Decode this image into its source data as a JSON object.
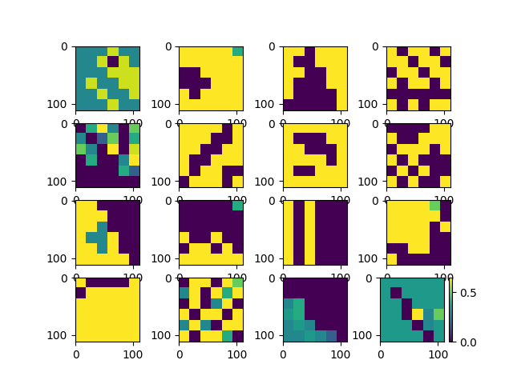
{
  "chart_data": [
    {
      "type": "heatmap",
      "xlim": [
        -0.5,
        111.5
      ],
      "ylim": [
        111.5,
        -0.5
      ],
      "xticks": [
        0,
        100
      ],
      "yticks": [
        0,
        100
      ],
      "cells": [
        [
          0.3,
          0.3,
          0.3,
          0.6,
          0.3,
          0.3
        ],
        [
          0.3,
          0.3,
          0.6,
          0,
          0.6,
          0.3
        ],
        [
          0.3,
          0.3,
          0.3,
          0.6,
          0.6,
          0.6
        ],
        [
          0.3,
          0.6,
          0.3,
          0.3,
          0.6,
          0.6
        ],
        [
          0.3,
          0.3,
          0.6,
          0.3,
          0.3,
          0.6
        ],
        [
          0.3,
          0.3,
          0.3,
          0.6,
          0.3,
          0.3
        ]
      ]
    },
    {
      "type": "heatmap",
      "xlim": [
        -0.5,
        111.5
      ],
      "ylim": [
        111.5,
        -0.5
      ],
      "xticks": [
        0,
        100
      ],
      "yticks": [
        0,
        100
      ],
      "cells": [
        [
          0.65,
          0.65,
          0.65,
          0.65,
          0.65,
          0.4
        ],
        [
          0.65,
          0.65,
          0.65,
          0.65,
          0.65,
          0.65
        ],
        [
          0,
          0,
          0.65,
          0.65,
          0.65,
          0.65
        ],
        [
          0,
          0,
          0,
          0.65,
          0.65,
          0.65
        ],
        [
          0.65,
          0,
          0.65,
          0.65,
          0.65,
          0.65
        ],
        [
          0.65,
          0.65,
          0.65,
          0.65,
          0.65,
          0.65
        ]
      ]
    },
    {
      "type": "heatmap",
      "xlim": [
        -0.5,
        111.5
      ],
      "ylim": [
        111.5,
        -0.5
      ],
      "xticks": [
        0,
        100
      ],
      "yticks": [
        0,
        100
      ],
      "cells": [
        [
          0.65,
          0.65,
          0,
          0.65,
          0.65,
          0.65
        ],
        [
          0.65,
          0,
          0,
          0.65,
          0.65,
          0.65
        ],
        [
          0.65,
          0.65,
          0,
          0,
          0.65,
          0.65
        ],
        [
          0.65,
          0,
          0,
          0,
          0.65,
          0.65
        ],
        [
          0.65,
          0,
          0,
          0,
          0,
          0.65
        ],
        [
          0,
          0,
          0,
          0,
          0,
          0.65
        ]
      ]
    },
    {
      "type": "heatmap",
      "xlim": [
        -0.5,
        111.5
      ],
      "ylim": [
        111.5,
        -0.5
      ],
      "xticks": [
        0,
        100
      ],
      "yticks": [
        0,
        100
      ],
      "cells": [
        [
          0.65,
          0,
          0.65,
          0.65,
          0,
          0.65
        ],
        [
          0.65,
          0.65,
          0,
          0.65,
          0.65,
          0
        ],
        [
          0,
          0.65,
          0.65,
          0,
          0.65,
          0.65
        ],
        [
          0.65,
          0,
          0.65,
          0.65,
          0,
          0.65
        ],
        [
          0,
          0,
          0,
          0,
          0,
          0
        ],
        [
          0.65,
          0,
          0.65,
          0,
          0.65,
          0.65
        ]
      ]
    },
    {
      "type": "heatmap",
      "xlim": [
        -0.5,
        111.5
      ],
      "ylim": [
        111.5,
        -0.5
      ],
      "xticks": [
        0,
        100
      ],
      "yticks": [
        0,
        100
      ],
      "cells": [
        [
          0,
          0.4,
          0.65,
          0.3,
          0,
          0.5
        ],
        [
          0.3,
          0,
          0.2,
          0.5,
          0,
          0.4
        ],
        [
          0.5,
          0.3,
          0,
          0.65,
          0,
          0.6
        ],
        [
          0,
          0.4,
          0,
          0,
          0.3,
          0.65
        ],
        [
          0,
          0,
          0,
          0,
          0.4,
          0.2
        ],
        [
          0,
          0,
          0,
          0,
          0,
          0
        ]
      ]
    },
    {
      "type": "heatmap",
      "xlim": [
        -0.5,
        111.5
      ],
      "ylim": [
        111.5,
        -0.5
      ],
      "xticks": [
        0,
        100
      ],
      "yticks": [
        0,
        100
      ],
      "cells": [
        [
          0.65,
          0.65,
          0.65,
          0.65,
          0,
          0.65
        ],
        [
          0.65,
          0.65,
          0.65,
          0,
          0,
          0.65
        ],
        [
          0.65,
          0.65,
          0,
          0,
          0.65,
          0.65
        ],
        [
          0.65,
          0,
          0,
          0.65,
          0.65,
          0.65
        ],
        [
          0.65,
          0,
          0.65,
          0.65,
          0,
          0
        ],
        [
          0,
          0.65,
          0.65,
          0.65,
          0,
          0.65
        ]
      ]
    },
    {
      "type": "heatmap",
      "xlim": [
        -0.5,
        111.5
      ],
      "ylim": [
        111.5,
        -0.5
      ],
      "xticks": [
        0,
        100
      ],
      "yticks": [
        0,
        100
      ],
      "cells": [
        [
          0.65,
          0.65,
          0.65,
          0.65,
          0.65,
          0.65
        ],
        [
          0.65,
          0,
          0,
          0,
          0.65,
          0.65
        ],
        [
          0.65,
          0.65,
          0,
          0,
          0,
          0.65
        ],
        [
          0.65,
          0.65,
          0.65,
          0.65,
          0,
          0.65
        ],
        [
          0.65,
          0,
          0,
          0.65,
          0.65,
          0.65
        ],
        [
          0.65,
          0.65,
          0.65,
          0.65,
          0.65,
          0.65
        ]
      ]
    },
    {
      "type": "heatmap",
      "xlim": [
        -0.5,
        111.5
      ],
      "ylim": [
        111.5,
        -0.5
      ],
      "xticks": [
        0,
        100
      ],
      "yticks": [
        0,
        100
      ],
      "cells": [
        [
          0,
          0,
          0,
          0,
          0.65,
          0.65
        ],
        [
          0.65,
          0,
          0,
          0.65,
          0.65,
          0.65
        ],
        [
          0,
          0.65,
          0.65,
          0.65,
          0,
          0.65
        ],
        [
          0.65,
          0,
          0.65,
          0,
          0,
          0
        ],
        [
          0,
          0.65,
          0,
          0.65,
          0,
          0
        ],
        [
          0.65,
          0,
          0.65,
          0,
          0,
          0.65
        ]
      ]
    },
    {
      "type": "heatmap",
      "xlim": [
        -0.5,
        111.5
      ],
      "ylim": [
        111.5,
        -0.5
      ],
      "xticks": [
        0,
        100
      ],
      "yticks": [
        0,
        100
      ],
      "cells": [
        [
          0.65,
          0.65,
          0,
          0,
          0,
          0
        ],
        [
          0.65,
          0.65,
          0.65,
          0,
          0,
          0
        ],
        [
          0.65,
          0.65,
          0.3,
          0,
          0,
          0
        ],
        [
          0.65,
          0.3,
          0.3,
          0.65,
          0,
          0
        ],
        [
          0.65,
          0.65,
          0.3,
          0.65,
          0,
          0
        ],
        [
          0.65,
          0.65,
          0.65,
          0.65,
          0.65,
          0
        ]
      ]
    },
    {
      "type": "heatmap",
      "xlim": [
        -0.5,
        111.5
      ],
      "ylim": [
        111.5,
        -0.5
      ],
      "xticks": [
        0,
        100
      ],
      "yticks": [
        0,
        100
      ],
      "cells": [
        [
          0,
          0,
          0,
          0,
          0,
          0.4
        ],
        [
          0,
          0,
          0,
          0,
          0,
          0
        ],
        [
          0,
          0,
          0,
          0,
          0,
          0
        ],
        [
          0.65,
          0,
          0,
          0.65,
          0,
          0
        ],
        [
          0,
          0.65,
          0.65,
          0,
          0.65,
          0
        ],
        [
          0.65,
          0.65,
          0.65,
          0.65,
          0.65,
          0.65
        ]
      ]
    },
    {
      "type": "heatmap",
      "xlim": [
        -0.5,
        111.5
      ],
      "ylim": [
        111.5,
        -0.5
      ],
      "xticks": [
        0,
        100
      ],
      "yticks": [
        0,
        100
      ],
      "cells": [
        [
          0.65,
          0,
          0.65,
          0,
          0,
          0
        ],
        [
          0.65,
          0,
          0.65,
          0,
          0,
          0
        ],
        [
          0.65,
          0,
          0.65,
          0,
          0,
          0
        ],
        [
          0.65,
          0,
          0.65,
          0,
          0,
          0
        ],
        [
          0.65,
          0,
          0.65,
          0,
          0,
          0
        ],
        [
          0.65,
          0,
          0.65,
          0,
          0,
          0
        ]
      ]
    },
    {
      "type": "heatmap",
      "xlim": [
        -0.5,
        111.5
      ],
      "ylim": [
        111.5,
        -0.5
      ],
      "xticks": [
        0,
        100
      ],
      "yticks": [
        0,
        100
      ],
      "cells": [
        [
          0.65,
          0.65,
          0.65,
          0.65,
          0.5,
          0
        ],
        [
          0.65,
          0.65,
          0.65,
          0.65,
          0.65,
          0
        ],
        [
          0.65,
          0.65,
          0.65,
          0.65,
          0,
          0.65
        ],
        [
          0.65,
          0.65,
          0.65,
          0.65,
          0,
          0
        ],
        [
          0,
          0,
          0.65,
          0.65,
          0,
          0
        ],
        [
          0.65,
          0,
          0,
          0,
          0,
          0
        ]
      ]
    },
    {
      "type": "heatmap",
      "xlim": [
        -0.5,
        111.5
      ],
      "ylim": [
        111.5,
        -0.5
      ],
      "xticks": [
        0,
        100
      ],
      "yticks": [
        0,
        100
      ],
      "cells": [
        [
          0.65,
          0,
          0,
          0,
          0,
          0.65
        ],
        [
          0,
          0.65,
          0.65,
          0.65,
          0.65,
          0.65
        ],
        [
          0.65,
          0.65,
          0.65,
          0.65,
          0.65,
          0.65
        ],
        [
          0.65,
          0.65,
          0.65,
          0.65,
          0.65,
          0.65
        ],
        [
          0.65,
          0.65,
          0.65,
          0.65,
          0.65,
          0.65
        ],
        [
          0.65,
          0.65,
          0.65,
          0.65,
          0.65,
          0.65
        ]
      ]
    },
    {
      "type": "heatmap",
      "xlim": [
        -0.5,
        111.5
      ],
      "ylim": [
        111.5,
        -0.5
      ],
      "xticks": [
        0,
        100
      ],
      "yticks": [
        0,
        100
      ],
      "cells": [
        [
          0,
          0.65,
          0.65,
          0,
          0.65,
          0.5
        ],
        [
          0.3,
          0.65,
          0,
          0.65,
          0.4,
          0.65
        ],
        [
          0,
          0.65,
          0,
          0.3,
          0.65,
          0
        ],
        [
          0.65,
          0,
          0.65,
          0.65,
          0,
          0.65
        ],
        [
          0.3,
          0.65,
          0.3,
          0,
          0.65,
          0.65
        ],
        [
          0.65,
          0,
          0.65,
          0.65,
          0.4,
          0
        ]
      ]
    },
    {
      "type": "heatmap",
      "xlim": [
        -0.5,
        111.5
      ],
      "ylim": [
        111.5,
        -0.5
      ],
      "xticks": [
        0,
        100
      ],
      "yticks": [
        0,
        100
      ],
      "cells": [
        [
          0,
          0,
          0,
          0,
          0,
          0
        ],
        [
          0,
          0,
          0,
          0,
          0,
          0
        ],
        [
          0.3,
          0.4,
          0,
          0,
          0,
          0
        ],
        [
          0.35,
          0.4,
          0,
          0,
          0,
          0
        ],
        [
          0.3,
          0.35,
          0.3,
          0,
          0,
          0
        ],
        [
          0.3,
          0.3,
          0.35,
          0.3,
          0.2,
          0
        ]
      ]
    },
    {
      "type": "heatmap",
      "xlim": [
        -0.5,
        111.5
      ],
      "ylim": [
        111.5,
        -0.5
      ],
      "xticks": [
        0,
        100
      ],
      "yticks": [
        0,
        100
      ],
      "cells": [
        [
          0.35,
          0.35,
          0.35,
          0.35,
          0.35,
          0.35
        ],
        [
          0.35,
          0,
          0.35,
          0.35,
          0.35,
          0.35
        ],
        [
          0.35,
          0.35,
          0,
          0.35,
          0.35,
          0.35
        ],
        [
          0.35,
          0.35,
          0,
          0.65,
          0.3,
          0.5
        ],
        [
          0.35,
          0.35,
          0.35,
          0,
          0.3,
          0.35
        ],
        [
          0.35,
          0.35,
          0.35,
          0.35,
          0,
          0.35
        ]
      ]
    }
  ],
  "colorbar": {
    "range": [
      0,
      0.65
    ],
    "ticks": [
      {
        "value": 0,
        "label": "0.0"
      },
      0.5
    ]
  }
}
